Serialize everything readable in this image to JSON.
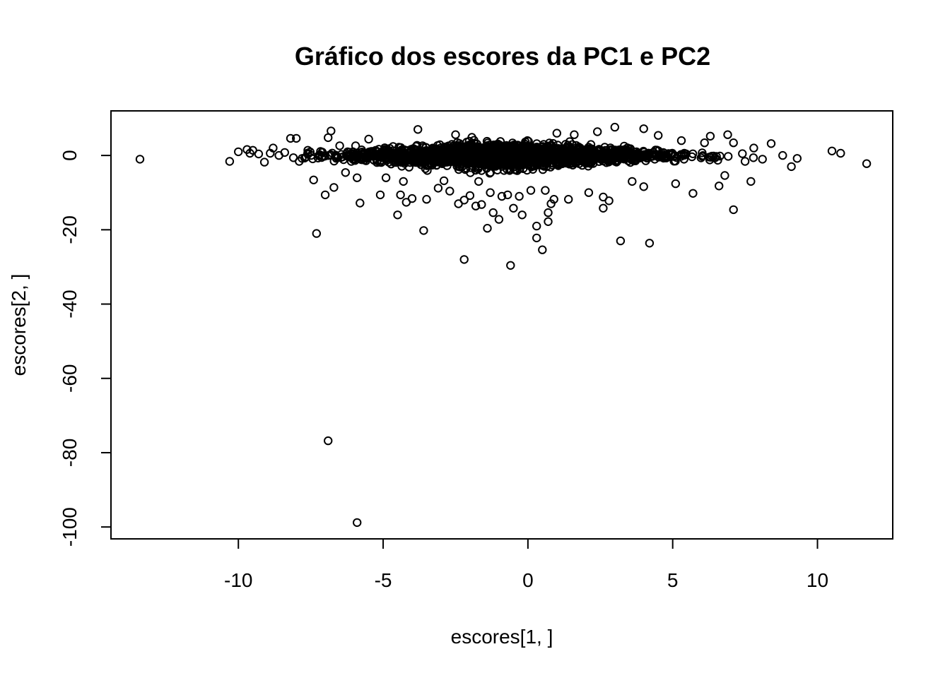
{
  "chart_data": {
    "type": "scatter",
    "title": "Gráfico dos escores da PC1 e PC2",
    "xlabel": "escores[1, ]",
    "ylabel": "escores[2, ]",
    "xlim": [
      -14.4,
      12.6
    ],
    "ylim": [
      -103.2,
      12.0
    ],
    "xticks": [
      -10,
      -5,
      0,
      5,
      10
    ],
    "xtick_labels": [
      "-10",
      "-5",
      "0",
      "5",
      "10"
    ],
    "yticks": [
      0,
      -20,
      -40,
      -60,
      -80,
      -100
    ],
    "ytick_labels": [
      "0",
      "-20",
      "-40",
      "-60",
      "-80",
      "-100"
    ],
    "grid": false,
    "marker": "open-circle",
    "series": [
      {
        "points": [
          [
            -13.4,
            -1.0
          ],
          [
            -10.3,
            -1.6
          ],
          [
            -10.0,
            1.0
          ],
          [
            -9.7,
            1.6
          ],
          [
            -9.6,
            0.6
          ],
          [
            -9.5,
            1.4
          ],
          [
            -9.3,
            0.4
          ],
          [
            -9.1,
            -1.8
          ],
          [
            -8.9,
            0.6
          ],
          [
            -8.8,
            2.0
          ],
          [
            -8.6,
            0.0
          ],
          [
            -8.4,
            0.8
          ],
          [
            -8.2,
            4.6
          ],
          [
            -8.1,
            -0.6
          ],
          [
            -8.0,
            4.6
          ],
          [
            -7.9,
            -1.6
          ],
          [
            -7.8,
            -0.8
          ],
          [
            -7.6,
            1.4
          ],
          [
            -7.4,
            -6.6
          ],
          [
            -7.3,
            -21.0
          ],
          [
            -7.1,
            0.8
          ],
          [
            -7.0,
            -10.6
          ],
          [
            -6.9,
            4.8
          ],
          [
            -6.8,
            6.6
          ],
          [
            -6.7,
            -8.6
          ],
          [
            -6.5,
            2.6
          ],
          [
            -6.3,
            -4.6
          ],
          [
            -6.1,
            -1.6
          ],
          [
            -5.9,
            -6.0
          ],
          [
            -5.8,
            -12.8
          ],
          [
            -5.7,
            0.6
          ],
          [
            -5.5,
            4.4
          ],
          [
            -5.1,
            -10.6
          ],
          [
            -4.9,
            -6.0
          ],
          [
            -4.5,
            -16.0
          ],
          [
            -4.4,
            -10.6
          ],
          [
            -4.3,
            -7.0
          ],
          [
            -4.2,
            -12.6
          ],
          [
            -4.0,
            -11.6
          ],
          [
            -3.8,
            7.0
          ],
          [
            -3.6,
            -20.2
          ],
          [
            -3.5,
            -11.8
          ],
          [
            -3.1,
            -8.8
          ],
          [
            -2.9,
            -6.8
          ],
          [
            -2.7,
            -9.6
          ],
          [
            -2.5,
            5.6
          ],
          [
            -2.4,
            -13.0
          ],
          [
            -2.2,
            -28.0
          ],
          [
            -2.2,
            -12.0
          ],
          [
            -2.0,
            -10.8
          ],
          [
            -1.8,
            -13.6
          ],
          [
            -1.7,
            -7.0
          ],
          [
            -1.6,
            -13.2
          ],
          [
            -1.4,
            -19.6
          ],
          [
            -1.3,
            -10.0
          ],
          [
            -1.2,
            -15.4
          ],
          [
            -1.0,
            -17.2
          ],
          [
            -0.9,
            -11.0
          ],
          [
            -0.7,
            -10.6
          ],
          [
            -0.6,
            -29.6
          ],
          [
            -0.5,
            -14.2
          ],
          [
            -0.3,
            -11.0
          ],
          [
            -0.2,
            -16.0
          ],
          [
            0.1,
            -9.4
          ],
          [
            0.3,
            -19.0
          ],
          [
            0.3,
            -22.2
          ],
          [
            0.5,
            -25.4
          ],
          [
            0.6,
            -9.4
          ],
          [
            0.7,
            -15.4
          ],
          [
            0.7,
            -17.8
          ],
          [
            0.8,
            -13.0
          ],
          [
            0.9,
            -11.8
          ],
          [
            1.0,
            6.0
          ],
          [
            1.4,
            -11.8
          ],
          [
            1.6,
            5.6
          ],
          [
            2.1,
            -10.0
          ],
          [
            2.4,
            6.4
          ],
          [
            2.6,
            -11.2
          ],
          [
            2.6,
            -14.2
          ],
          [
            2.8,
            -12.2
          ],
          [
            3.0,
            7.6
          ],
          [
            3.2,
            -23.0
          ],
          [
            3.6,
            -7.0
          ],
          [
            4.0,
            -8.4
          ],
          [
            4.0,
            7.2
          ],
          [
            4.2,
            -23.6
          ],
          [
            4.5,
            5.4
          ],
          [
            5.1,
            -7.6
          ],
          [
            5.3,
            4.0
          ],
          [
            5.7,
            -10.2
          ],
          [
            6.1,
            3.4
          ],
          [
            6.3,
            5.2
          ],
          [
            6.6,
            -8.2
          ],
          [
            6.8,
            -5.4
          ],
          [
            6.9,
            5.6
          ],
          [
            7.1,
            -14.6
          ],
          [
            7.1,
            3.4
          ],
          [
            7.5,
            -1.6
          ],
          [
            7.7,
            -7.0
          ],
          [
            7.8,
            2.0
          ],
          [
            8.1,
            -1.0
          ],
          [
            8.4,
            3.2
          ],
          [
            8.8,
            0.0
          ],
          [
            9.1,
            -3.0
          ],
          [
            9.3,
            -0.8
          ],
          [
            10.5,
            1.2
          ],
          [
            10.8,
            0.6
          ],
          [
            11.7,
            -2.2
          ],
          [
            -6.9,
            -76.8
          ],
          [
            -5.9,
            -98.8
          ]
        ]
      }
    ],
    "dense_cluster": {
      "x_range": [
        -7.8,
        8.0
      ],
      "y_range": [
        -5.0,
        5.0
      ],
      "center": [
        -0.8,
        0.0
      ],
      "count": 2200
    }
  }
}
